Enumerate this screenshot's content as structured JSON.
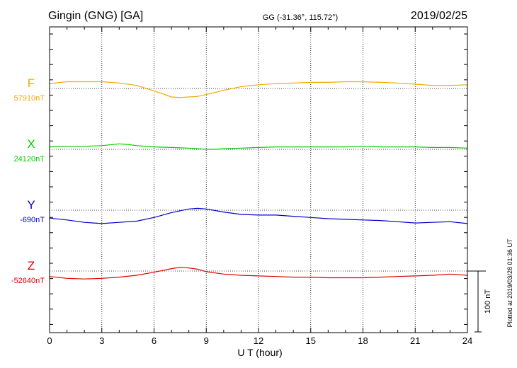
{
  "header": {
    "station": "Gingin (GNG)  [GA]",
    "coords": "GG (-31.36°, 115.72°)",
    "date": "2019/02/25"
  },
  "footer": {
    "plotted": "Plotted at 2019/03/28 01:36 UT"
  },
  "chart_data": {
    "type": "line",
    "xlabel": "U T (hour)",
    "xlim": [
      0,
      24
    ],
    "x_ticks": [
      0,
      3,
      6,
      9,
      12,
      15,
      18,
      21,
      24
    ],
    "scale_bar": "100 nT",
    "nT_per_division": 100,
    "grid": "dotted, vertical every 3 hours",
    "series": [
      {
        "name": "F",
        "baseline_label": "57910nT",
        "color": "#f2a800",
        "x": [
          0,
          1,
          2,
          3,
          4,
          5,
          6,
          6.5,
          7,
          7.5,
          8,
          8.5,
          9,
          10,
          11,
          12,
          13,
          14,
          15,
          16,
          17,
          18,
          19,
          20,
          21,
          22,
          23,
          24
        ],
        "y": [
          57918,
          57921,
          57921,
          57921,
          57919,
          57915,
          57906,
          57901,
          57896,
          57895,
          57896,
          57897,
          57900,
          57907,
          57913,
          57916,
          57918,
          57919,
          57920,
          57920,
          57921,
          57921,
          57920,
          57919,
          57917,
          57915,
          57915,
          57916
        ]
      },
      {
        "name": "X",
        "baseline_label": "24120nT",
        "color": "#00cc00",
        "x": [
          0,
          1,
          2,
          3,
          4,
          4.5,
          5,
          6,
          7,
          8,
          8.5,
          9,
          9.5,
          10,
          11,
          12,
          13,
          14,
          15,
          16,
          17,
          18,
          19,
          20,
          21,
          22,
          23,
          24
        ],
        "y": [
          24124,
          24125,
          24125,
          24126,
          24129,
          24128,
          24126,
          24124,
          24123,
          24122,
          24121,
          24120,
          24120,
          24121,
          24122,
          24123,
          24124,
          24124,
          24124,
          24124,
          24124,
          24125,
          24124,
          24124,
          24124,
          24123,
          24123,
          24122
        ]
      },
      {
        "name": "Y",
        "baseline_label": "-690nT",
        "color": "#0000cc",
        "x": [
          0,
          1,
          2,
          3,
          4,
          5,
          6,
          7,
          8,
          8.5,
          9,
          10,
          11,
          12,
          13,
          14,
          15,
          16,
          17,
          18,
          19,
          20,
          21,
          22,
          23,
          24
        ],
        "y": [
          -703,
          -706,
          -710,
          -712,
          -710,
          -708,
          -702,
          -694,
          -688,
          -687,
          -688,
          -693,
          -697,
          -698,
          -698,
          -700,
          -702,
          -704,
          -705,
          -706,
          -707,
          -709,
          -711,
          -710,
          -709,
          -712
        ]
      },
      {
        "name": "Z",
        "baseline_label": "-52640nT",
        "color": "#dd0000",
        "x": [
          0,
          1,
          2,
          3,
          4,
          5,
          6,
          7,
          7.5,
          8,
          8.5,
          9,
          10,
          11,
          12,
          13,
          14,
          15,
          16,
          17,
          18,
          19,
          20,
          21,
          22,
          23,
          24
        ],
        "y": [
          -52649,
          -52652,
          -52653,
          -52652,
          -52650,
          -52647,
          -52642,
          -52636,
          -52634,
          -52635,
          -52637,
          -52641,
          -52645,
          -52647,
          -52648,
          -52649,
          -52650,
          -52650,
          -52651,
          -52651,
          -52651,
          -52650,
          -52649,
          -52648,
          -52647,
          -52645,
          -52647
        ]
      }
    ]
  }
}
